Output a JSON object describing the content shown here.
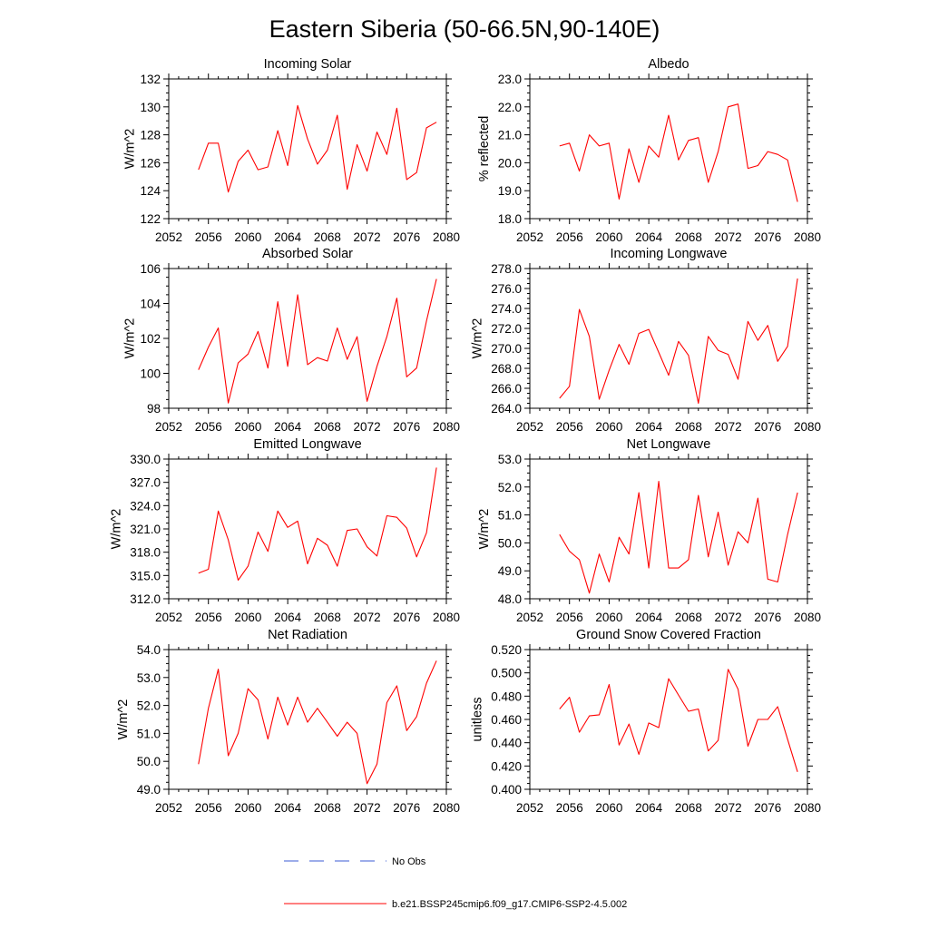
{
  "figure_title": "Eastern Siberia (50-66.5N,90-140E)",
  "legend": {
    "obs_label": "No Obs",
    "obs_color": "#3b5bd6",
    "model_label": "b.e21.BSSP245cmip6.f09_g17.CMIP6-SSP2-4.5.002",
    "model_color": "#ff0000"
  },
  "chart_data": [
    {
      "type": "line",
      "title": "Incoming Solar",
      "ylabel": "W/m^2",
      "xlim": [
        2052,
        2080
      ],
      "ylim": [
        122,
        132
      ],
      "xticks": [
        "2052",
        "2056",
        "2060",
        "2064",
        "2068",
        "2072",
        "2076",
        "2080"
      ],
      "yticks": [
        "122",
        "124",
        "126",
        "128",
        "130",
        "132"
      ],
      "series": [
        {
          "name": "b.e21.BSSP245cmip6.f09_g17.CMIP6-SSP2-4.5.002",
          "x": [
            2055,
            2056,
            2057,
            2058,
            2059,
            2060,
            2061,
            2062,
            2063,
            2064,
            2065,
            2066,
            2067,
            2068,
            2069,
            2070,
            2071,
            2072,
            2073,
            2074,
            2075,
            2076,
            2077,
            2078,
            2079
          ],
          "values": [
            125.5,
            127.4,
            127.4,
            123.9,
            126.1,
            126.9,
            125.5,
            125.7,
            128.3,
            125.8,
            130.1,
            127.7,
            125.9,
            126.9,
            129.4,
            124.1,
            127.3,
            125.4,
            128.2,
            126.6,
            129.9,
            124.8,
            125.3,
            128.5,
            128.9
          ]
        }
      ]
    },
    {
      "type": "line",
      "title": "Albedo",
      "ylabel": "% reflected",
      "xlim": [
        2052,
        2080
      ],
      "ylim": [
        18.0,
        23.0
      ],
      "xticks": [
        "2052",
        "2056",
        "2060",
        "2064",
        "2068",
        "2072",
        "2076",
        "2080"
      ],
      "yticks": [
        "18.0",
        "19.0",
        "20.0",
        "21.0",
        "22.0",
        "23.0"
      ],
      "series": [
        {
          "name": "b.e21.BSSP245cmip6.f09_g17.CMIP6-SSP2-4.5.002",
          "x": [
            2055,
            2056,
            2057,
            2058,
            2059,
            2060,
            2061,
            2062,
            2063,
            2064,
            2065,
            2066,
            2067,
            2068,
            2069,
            2070,
            2071,
            2072,
            2073,
            2074,
            2075,
            2076,
            2077,
            2078,
            2079
          ],
          "values": [
            20.6,
            20.7,
            19.7,
            21.0,
            20.6,
            20.7,
            18.7,
            20.5,
            19.3,
            20.6,
            20.2,
            21.7,
            20.1,
            20.8,
            20.9,
            19.3,
            20.4,
            22.0,
            22.1,
            19.8,
            19.9,
            20.4,
            20.3,
            20.1,
            18.6
          ]
        }
      ]
    },
    {
      "type": "line",
      "title": "Absorbed Solar",
      "ylabel": "W/m^2",
      "xlim": [
        2052,
        2080
      ],
      "ylim": [
        98,
        106
      ],
      "xticks": [
        "2052",
        "2056",
        "2060",
        "2064",
        "2068",
        "2072",
        "2076",
        "2080"
      ],
      "yticks": [
        "98",
        "100",
        "102",
        "104",
        "106"
      ],
      "series": [
        {
          "name": "b.e21.BSSP245cmip6.f09_g17.CMIP6-SSP2-4.5.002",
          "x": [
            2055,
            2056,
            2057,
            2058,
            2059,
            2060,
            2061,
            2062,
            2063,
            2064,
            2065,
            2066,
            2067,
            2068,
            2069,
            2070,
            2071,
            2072,
            2073,
            2074,
            2075,
            2076,
            2077,
            2078,
            2079
          ],
          "values": [
            100.2,
            101.5,
            102.6,
            98.3,
            100.6,
            101.1,
            102.4,
            100.3,
            104.1,
            100.4,
            104.5,
            100.5,
            100.9,
            100.7,
            102.6,
            100.8,
            102.1,
            98.4,
            100.4,
            102.1,
            104.3,
            99.8,
            100.3,
            103.0,
            105.4
          ]
        }
      ]
    },
    {
      "type": "line",
      "title": "Incoming Longwave",
      "ylabel": "W/m^2",
      "xlim": [
        2052,
        2080
      ],
      "ylim": [
        264.0,
        278.0
      ],
      "xticks": [
        "2052",
        "2056",
        "2060",
        "2064",
        "2068",
        "2072",
        "2076",
        "2080"
      ],
      "yticks": [
        "264.0",
        "266.0",
        "268.0",
        "270.0",
        "272.0",
        "274.0",
        "276.0",
        "278.0"
      ],
      "series": [
        {
          "name": "b.e21.BSSP245cmip6.f09_g17.CMIP6-SSP2-4.5.002",
          "x": [
            2055,
            2056,
            2057,
            2058,
            2059,
            2060,
            2061,
            2062,
            2063,
            2064,
            2065,
            2066,
            2067,
            2068,
            2069,
            2070,
            2071,
            2072,
            2073,
            2074,
            2075,
            2076,
            2077,
            2078,
            2079
          ],
          "values": [
            265.0,
            266.2,
            273.9,
            271.2,
            264.9,
            267.8,
            270.4,
            268.4,
            271.5,
            271.9,
            269.6,
            267.3,
            270.7,
            269.3,
            264.5,
            271.2,
            269.8,
            269.4,
            266.9,
            272.7,
            270.8,
            272.3,
            268.7,
            270.2,
            277.0
          ]
        }
      ]
    },
    {
      "type": "line",
      "title": "Emitted Longwave",
      "ylabel": "W/m^2",
      "xlim": [
        2052,
        2080
      ],
      "ylim": [
        312.0,
        330.0
      ],
      "xticks": [
        "2052",
        "2056",
        "2060",
        "2064",
        "2068",
        "2072",
        "2076",
        "2080"
      ],
      "yticks": [
        "312.0",
        "315.0",
        "318.0",
        "321.0",
        "324.0",
        "327.0",
        "330.0"
      ],
      "series": [
        {
          "name": "b.e21.BSSP245cmip6.f09_g17.CMIP6-SSP2-4.5.002",
          "x": [
            2055,
            2056,
            2057,
            2058,
            2059,
            2060,
            2061,
            2062,
            2063,
            2064,
            2065,
            2066,
            2067,
            2068,
            2069,
            2070,
            2071,
            2072,
            2073,
            2074,
            2075,
            2076,
            2077,
            2078,
            2079
          ],
          "values": [
            315.3,
            315.8,
            323.3,
            319.6,
            314.4,
            316.2,
            320.6,
            318.1,
            323.3,
            321.2,
            322.0,
            316.5,
            319.8,
            318.9,
            316.2,
            320.8,
            321.0,
            318.7,
            317.5,
            322.7,
            322.5,
            321.1,
            317.4,
            320.5,
            328.9
          ]
        }
      ]
    },
    {
      "type": "line",
      "title": "Net Longwave",
      "ylabel": "W/m^2",
      "xlim": [
        2052,
        2080
      ],
      "ylim": [
        48.0,
        53.0
      ],
      "xticks": [
        "2052",
        "2056",
        "2060",
        "2064",
        "2068",
        "2072",
        "2076",
        "2080"
      ],
      "yticks": [
        "48.0",
        "49.0",
        "50.0",
        "51.0",
        "52.0",
        "53.0"
      ],
      "series": [
        {
          "name": "b.e21.BSSP245cmip6.f09_g17.CMIP6-SSP2-4.5.002",
          "x": [
            2055,
            2056,
            2057,
            2058,
            2059,
            2060,
            2061,
            2062,
            2063,
            2064,
            2065,
            2066,
            2067,
            2068,
            2069,
            2070,
            2071,
            2072,
            2073,
            2074,
            2075,
            2076,
            2077,
            2078,
            2079
          ],
          "values": [
            50.3,
            49.7,
            49.4,
            48.2,
            49.6,
            48.6,
            50.2,
            49.6,
            51.8,
            49.1,
            52.2,
            49.1,
            49.1,
            49.4,
            51.7,
            49.5,
            51.1,
            49.2,
            50.4,
            50.0,
            51.6,
            48.7,
            48.6,
            50.3,
            51.8
          ]
        }
      ]
    },
    {
      "type": "line",
      "title": "Net Radiation",
      "ylabel": "W/m^2",
      "xlim": [
        2052,
        2080
      ],
      "ylim": [
        49.0,
        54.0
      ],
      "xticks": [
        "2052",
        "2056",
        "2060",
        "2064",
        "2068",
        "2072",
        "2076",
        "2080"
      ],
      "yticks": [
        "49.0",
        "50.0",
        "51.0",
        "52.0",
        "53.0",
        "54.0"
      ],
      "series": [
        {
          "name": "b.e21.BSSP245cmip6.f09_g17.CMIP6-SSP2-4.5.002",
          "x": [
            2055,
            2056,
            2057,
            2058,
            2059,
            2060,
            2061,
            2062,
            2063,
            2064,
            2065,
            2066,
            2067,
            2068,
            2069,
            2070,
            2071,
            2072,
            2073,
            2074,
            2075,
            2076,
            2077,
            2078,
            2079
          ],
          "values": [
            49.9,
            51.9,
            53.3,
            50.2,
            51.0,
            52.6,
            52.2,
            50.8,
            52.3,
            51.3,
            52.3,
            51.4,
            51.9,
            51.4,
            50.9,
            51.4,
            51.0,
            49.2,
            49.9,
            52.1,
            52.7,
            51.1,
            51.6,
            52.8,
            53.6
          ]
        }
      ]
    },
    {
      "type": "line",
      "title": "Ground Snow Covered Fraction",
      "ylabel": "unitless",
      "xlim": [
        2052,
        2080
      ],
      "ylim": [
        0.4,
        0.52
      ],
      "xticks": [
        "2052",
        "2056",
        "2060",
        "2064",
        "2068",
        "2072",
        "2076",
        "2080"
      ],
      "yticks": [
        "0.400",
        "0.420",
        "0.440",
        "0.460",
        "0.480",
        "0.500",
        "0.520"
      ],
      "series": [
        {
          "name": "b.e21.BSSP245cmip6.f09_g17.CMIP6-SSP2-4.5.002",
          "x": [
            2055,
            2056,
            2057,
            2058,
            2059,
            2060,
            2061,
            2062,
            2063,
            2064,
            2065,
            2066,
            2067,
            2068,
            2069,
            2070,
            2071,
            2072,
            2073,
            2074,
            2075,
            2076,
            2077,
            2078,
            2079
          ],
          "values": [
            0.469,
            0.479,
            0.449,
            0.463,
            0.464,
            0.49,
            0.438,
            0.456,
            0.43,
            0.457,
            0.453,
            0.495,
            0.481,
            0.467,
            0.469,
            0.433,
            0.442,
            0.503,
            0.486,
            0.437,
            0.46,
            0.46,
            0.471,
            0.443,
            0.415
          ]
        }
      ]
    }
  ]
}
